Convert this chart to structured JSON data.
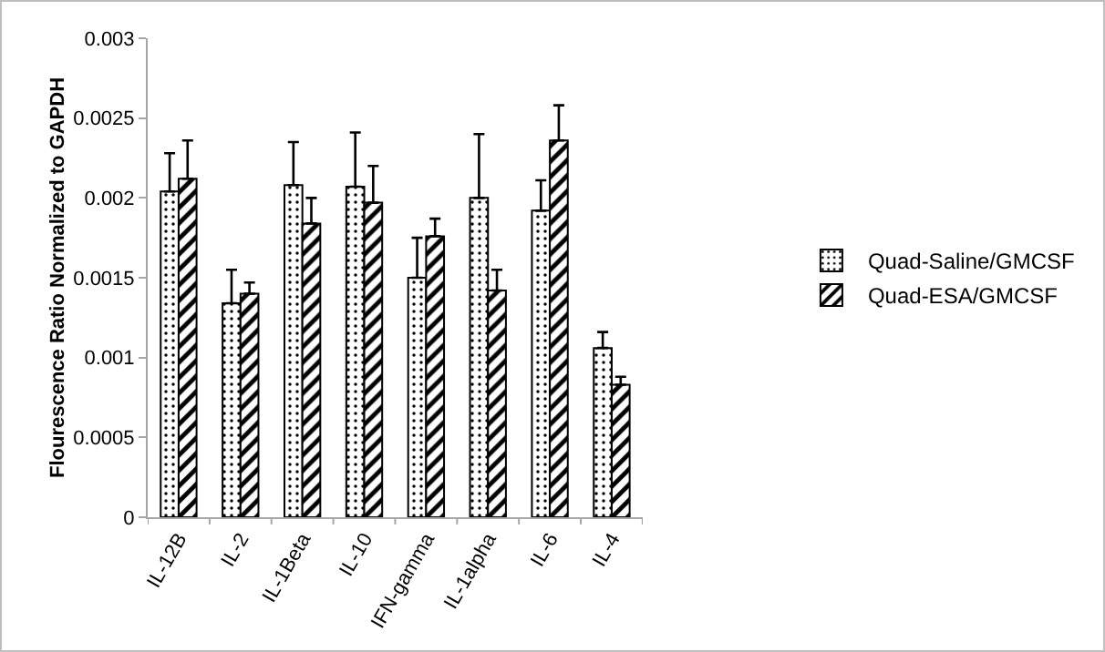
{
  "chart_data": {
    "type": "bar",
    "ylabel": "Flourescence Ratio Normalized to GAPDH",
    "categories": [
      "IL-12B",
      "IL-2",
      "IL-1Beta",
      "IL-10",
      "IFN-gamma",
      "IL-1alpha",
      "IL-6",
      "IL-4"
    ],
    "series": [
      {
        "name": "Quad-Saline/GMCSF",
        "color": "#000000",
        "values": [
          0.00204,
          0.00134,
          0.00208,
          0.00207,
          0.0015,
          0.002,
          0.00192,
          0.00106
        ],
        "errors": [
          [
            0.00204,
            0.00228
          ],
          [
            0.00134,
            0.00155
          ],
          [
            0.00208,
            0.00235
          ],
          [
            0.00207,
            0.00241
          ],
          [
            0.0015,
            0.00175
          ],
          [
            0.002,
            0.0024
          ],
          [
            0.00192,
            0.00211
          ],
          [
            0.00106,
            0.00116
          ]
        ]
      },
      {
        "name": "Quad-ESA/GMCSF",
        "color": "#000000",
        "values": [
          0.00212,
          0.0014,
          0.00184,
          0.00197,
          0.00176,
          0.00142,
          0.00236,
          0.00083
        ],
        "errors": [
          [
            0.00212,
            0.00236
          ],
          [
            0.0014,
            0.00147
          ],
          [
            0.00184,
            0.002
          ],
          [
            0.00197,
            0.0022
          ],
          [
            0.00176,
            0.00187
          ],
          [
            0.00142,
            0.00155
          ],
          [
            0.00236,
            0.00258
          ],
          [
            0.00083,
            0.00088
          ]
        ]
      }
    ],
    "ylim": [
      0,
      0.003
    ],
    "yticks": [
      0,
      0.0005,
      0.001,
      0.0015,
      0.002,
      0.0025,
      0.003
    ],
    "grid": false,
    "legend": "right"
  }
}
